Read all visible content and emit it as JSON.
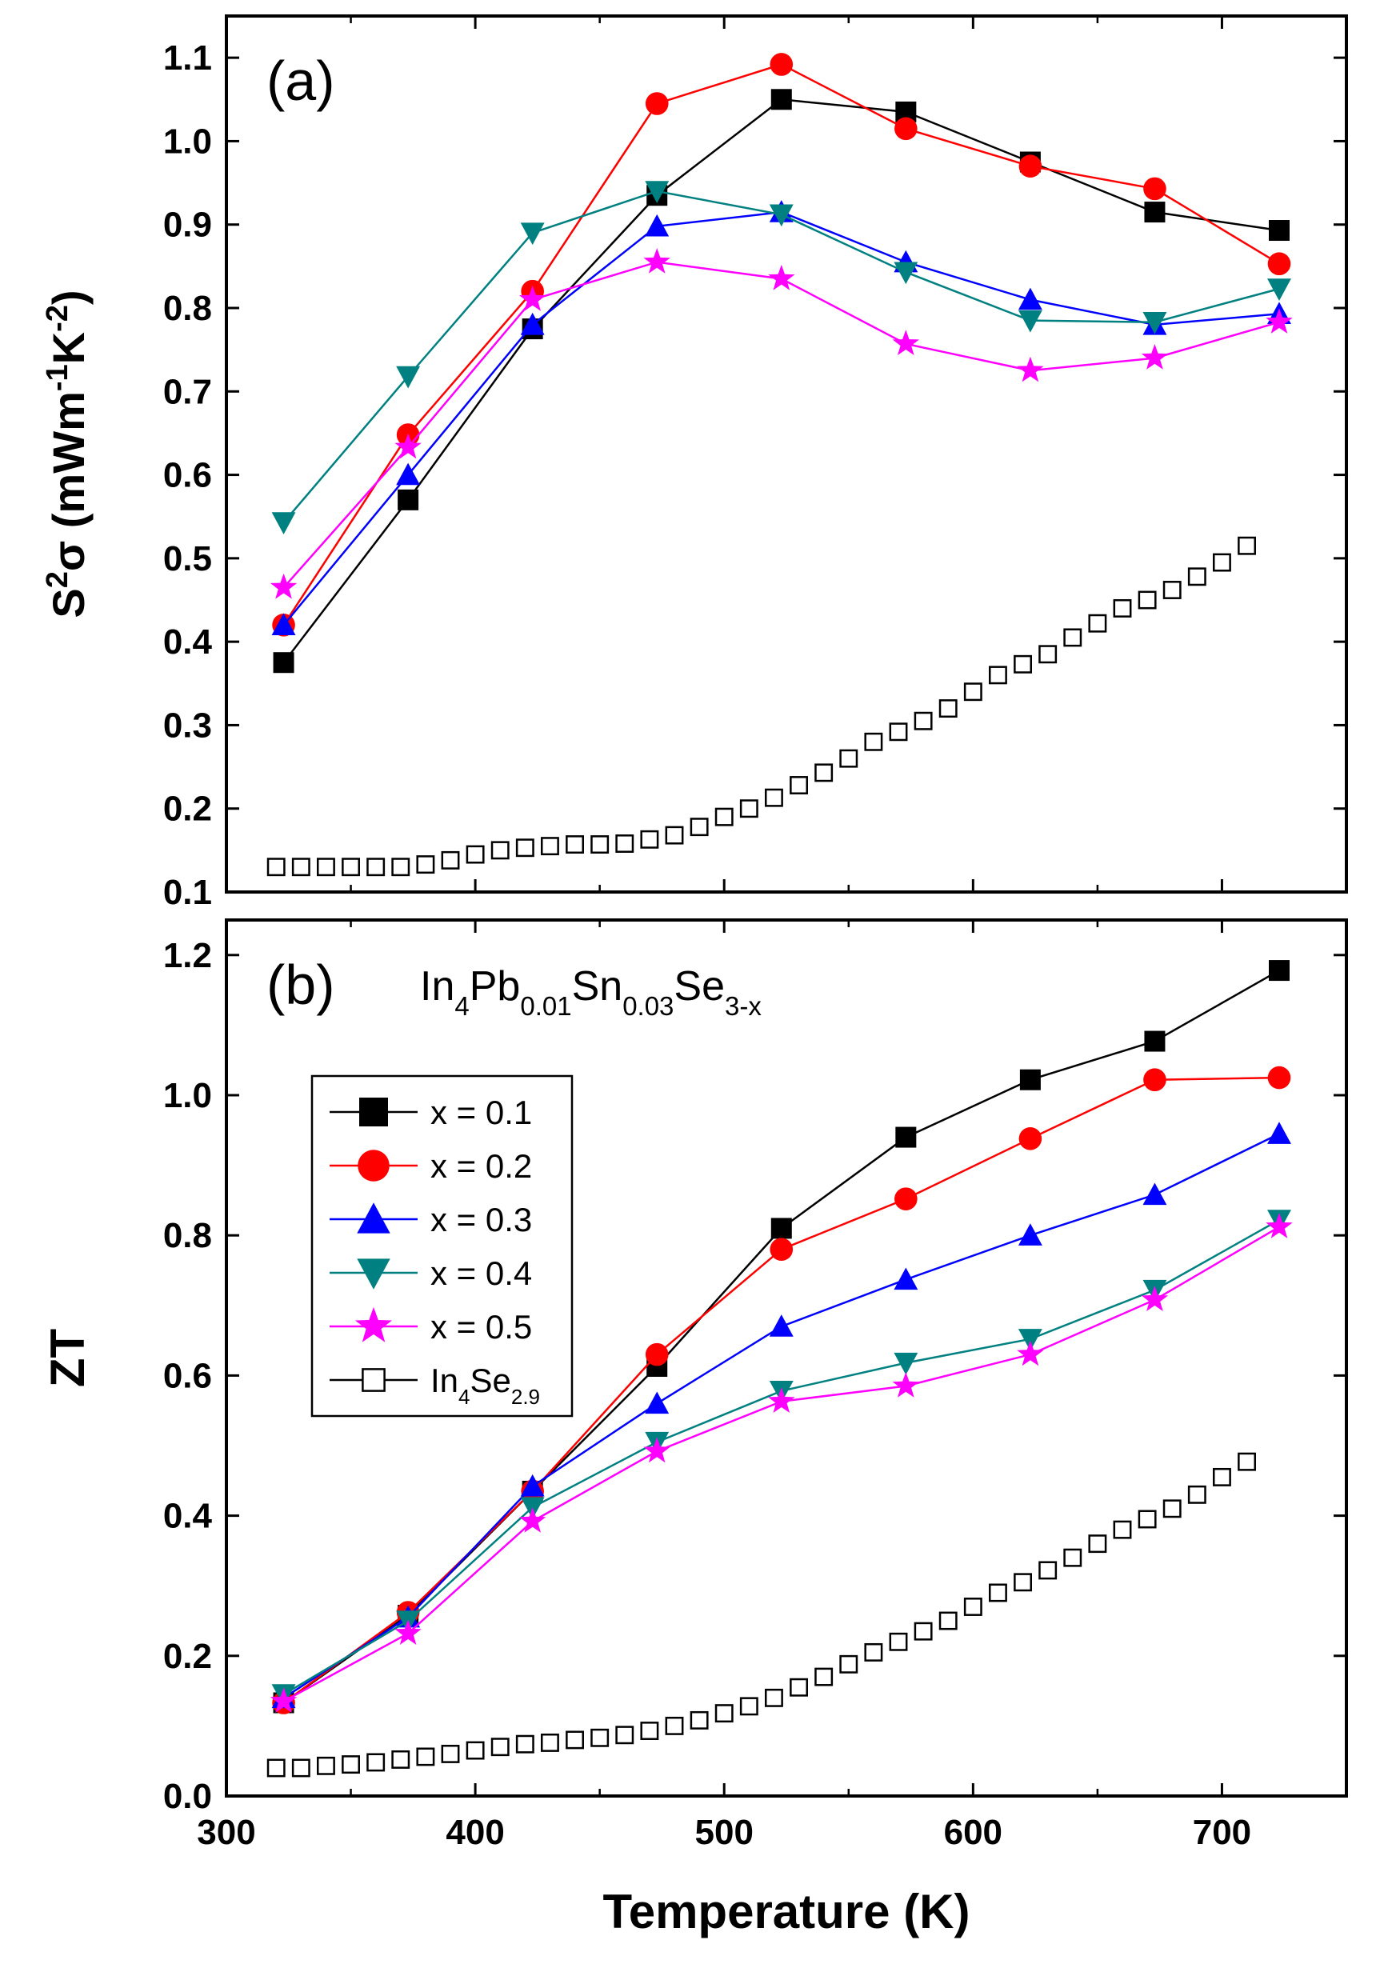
{
  "chart_data": [
    {
      "type": "line",
      "panel": "(a)",
      "xlabel": "Temperature (K)",
      "ylabel_parts": [
        "S",
        "2",
        "σ (mWm",
        "-1",
        "K",
        "-2",
        ")"
      ],
      "xlim": [
        300,
        750
      ],
      "ylim": [
        0.1,
        1.15
      ],
      "xticks": [
        "300",
        "400",
        "500",
        "600",
        "700"
      ],
      "yticks": [
        "0.1",
        "0.2",
        "0.3",
        "0.4",
        "0.5",
        "0.6",
        "0.7",
        "0.8",
        "0.9",
        "1.0",
        "1.1"
      ],
      "series": [
        {
          "name": "x = 0.1",
          "color": "#000000",
          "marker": "square",
          "x": [
            323,
            373,
            423,
            473,
            523,
            573,
            623,
            673,
            723
          ],
          "y": [
            0.375,
            0.57,
            0.775,
            0.935,
            1.05,
            1.035,
            0.975,
            0.915,
            0.893
          ]
        },
        {
          "name": "x = 0.2",
          "color": "#ff0000",
          "marker": "circle",
          "x": [
            323,
            373,
            423,
            473,
            523,
            573,
            623,
            673,
            723
          ],
          "y": [
            0.42,
            0.648,
            0.82,
            1.045,
            1.092,
            1.015,
            0.97,
            0.943,
            0.853
          ]
        },
        {
          "name": "x = 0.3",
          "color": "#0000ff",
          "marker": "triangle-up",
          "x": [
            323,
            373,
            423,
            473,
            523,
            573,
            623,
            673,
            723
          ],
          "y": [
            0.42,
            0.6,
            0.78,
            0.898,
            0.915,
            0.855,
            0.81,
            0.78,
            0.793
          ]
        },
        {
          "name": "x = 0.4",
          "color": "#008080",
          "marker": "triangle-down",
          "x": [
            323,
            373,
            423,
            473,
            523,
            573,
            623,
            673,
            723
          ],
          "y": [
            0.543,
            0.718,
            0.89,
            0.94,
            0.912,
            0.843,
            0.785,
            0.783,
            0.823
          ]
        },
        {
          "name": "x = 0.5",
          "color": "#ff00ff",
          "marker": "star",
          "x": [
            323,
            373,
            423,
            473,
            523,
            573,
            623,
            673,
            723
          ],
          "y": [
            0.465,
            0.633,
            0.81,
            0.855,
            0.835,
            0.757,
            0.725,
            0.74,
            0.783
          ]
        },
        {
          "name": "In4Se2.9",
          "color": "#000000",
          "marker": "open-square",
          "x": [
            320,
            330,
            340,
            350,
            360,
            370,
            380,
            390,
            400,
            410,
            420,
            430,
            440,
            450,
            460,
            470,
            480,
            490,
            500,
            510,
            520,
            530,
            540,
            550,
            560,
            570,
            580,
            590,
            600,
            610,
            620,
            630,
            640,
            650,
            660,
            670,
            680,
            690,
            700,
            710
          ],
          "y": [
            0.13,
            0.13,
            0.13,
            0.13,
            0.13,
            0.13,
            0.133,
            0.138,
            0.145,
            0.15,
            0.153,
            0.155,
            0.157,
            0.157,
            0.158,
            0.163,
            0.168,
            0.178,
            0.19,
            0.2,
            0.213,
            0.228,
            0.243,
            0.26,
            0.28,
            0.292,
            0.305,
            0.32,
            0.34,
            0.36,
            0.373,
            0.385,
            0.405,
            0.422,
            0.44,
            0.45,
            0.462,
            0.478,
            0.495,
            0.515
          ]
        }
      ]
    },
    {
      "type": "line",
      "panel": "(b)",
      "formula_parts": [
        "In",
        "4",
        "Pb",
        "0.01",
        "Sn",
        "0.03",
        "Se",
        "3-x"
      ],
      "xlabel": "Temperature (K)",
      "ylabel": "ZT",
      "xlim": [
        300,
        750
      ],
      "ylim": [
        0.0,
        1.25
      ],
      "xticks": [
        "300",
        "400",
        "500",
        "600",
        "700"
      ],
      "yticks": [
        "0.0",
        "0.2",
        "0.4",
        "0.6",
        "0.8",
        "1.0",
        "1.2"
      ],
      "legend_position": "upper-left",
      "series": [
        {
          "name": "x = 0.1",
          "color": "#000000",
          "marker": "square",
          "x": [
            323,
            373,
            423,
            473,
            523,
            573,
            623,
            673,
            723
          ],
          "y": [
            0.133,
            0.258,
            0.435,
            0.613,
            0.81,
            0.94,
            1.022,
            1.077,
            1.178
          ]
        },
        {
          "name": "x = 0.2",
          "color": "#ff0000",
          "marker": "circle",
          "x": [
            323,
            373,
            423,
            473,
            523,
            573,
            623,
            673,
            723
          ],
          "y": [
            0.133,
            0.262,
            0.435,
            0.63,
            0.78,
            0.852,
            0.938,
            1.022,
            1.025
          ]
        },
        {
          "name": "x = 0.3",
          "color": "#0000ff",
          "marker": "triangle-up",
          "x": [
            323,
            373,
            423,
            473,
            523,
            573,
            623,
            673,
            723
          ],
          "y": [
            0.14,
            0.255,
            0.442,
            0.56,
            0.67,
            0.737,
            0.8,
            0.858,
            0.945
          ]
        },
        {
          "name": "x = 0.4",
          "color": "#008080",
          "marker": "triangle-down",
          "x": [
            323,
            373,
            423,
            473,
            523,
            573,
            623,
            673,
            723
          ],
          "y": [
            0.145,
            0.25,
            0.412,
            0.505,
            0.578,
            0.618,
            0.652,
            0.722,
            0.822
          ]
        },
        {
          "name": "x = 0.5",
          "color": "#ff00ff",
          "marker": "star",
          "x": [
            323,
            373,
            423,
            473,
            523,
            573,
            623,
            673,
            723
          ],
          "y": [
            0.135,
            0.232,
            0.392,
            0.492,
            0.563,
            0.585,
            0.63,
            0.708,
            0.812
          ]
        },
        {
          "name": "In4Se2.9",
          "color": "#000000",
          "marker": "open-square",
          "x": [
            320,
            330,
            340,
            350,
            360,
            370,
            380,
            390,
            400,
            410,
            420,
            430,
            440,
            450,
            460,
            470,
            480,
            490,
            500,
            510,
            520,
            530,
            540,
            550,
            560,
            570,
            580,
            590,
            600,
            610,
            620,
            630,
            640,
            650,
            660,
            670,
            680,
            690,
            700,
            710
          ],
          "y": [
            0.04,
            0.04,
            0.043,
            0.045,
            0.048,
            0.052,
            0.056,
            0.06,
            0.065,
            0.07,
            0.074,
            0.076,
            0.08,
            0.083,
            0.087,
            0.093,
            0.1,
            0.108,
            0.118,
            0.128,
            0.14,
            0.155,
            0.17,
            0.188,
            0.205,
            0.22,
            0.235,
            0.25,
            0.27,
            0.29,
            0.305,
            0.322,
            0.34,
            0.36,
            0.38,
            0.395,
            0.41,
            0.43,
            0.455,
            0.477
          ]
        }
      ],
      "legend": [
        {
          "parts": [
            "x = 0.1"
          ]
        },
        {
          "parts": [
            "x = 0.2"
          ]
        },
        {
          "parts": [
            "x = 0.3"
          ]
        },
        {
          "parts": [
            "x = 0.4"
          ]
        },
        {
          "parts": [
            "x = 0.5"
          ]
        },
        {
          "parts": [
            "In",
            "4",
            "Se",
            "2.9"
          ]
        }
      ]
    }
  ]
}
